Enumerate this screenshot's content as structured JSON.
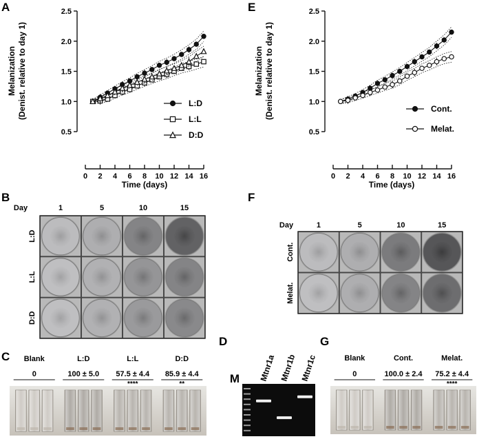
{
  "panels": {
    "A": "A",
    "B": "B",
    "C": "C",
    "D": "D",
    "E": "E",
    "F": "F",
    "G": "G"
  },
  "colors": {
    "ink": "#111111",
    "gel_bg": "#0c0c0c",
    "gel_band": "#f0f0f0",
    "well_bg": "#cfcfcf",
    "tube_bg": "#d9d5cf"
  },
  "chart_data": [
    {
      "id": "A",
      "type": "line",
      "xlabel": "Time (days)",
      "ylabel_line1": "Melanization",
      "ylabel_line2": "(Denist. relative to day 1)",
      "xlim": [
        0,
        16
      ],
      "ylim": [
        0.5,
        2.5
      ],
      "xticks": [
        "0",
        "2",
        "4",
        "6",
        "8",
        "10",
        "12",
        "14",
        "16"
      ],
      "yticks": [
        "0.5",
        "1.0",
        "1.5",
        "2.0",
        "2.5"
      ],
      "x": [
        1,
        2,
        3,
        4,
        5,
        6,
        7,
        8,
        9,
        10,
        11,
        12,
        13,
        14,
        15,
        16
      ],
      "legend_position": "right",
      "series": [
        {
          "name": "L:D",
          "marker": "filled-circle",
          "values": [
            1.0,
            1.07,
            1.14,
            1.21,
            1.28,
            1.34,
            1.41,
            1.47,
            1.53,
            1.6,
            1.65,
            1.71,
            1.78,
            1.86,
            1.95,
            2.08
          ]
        },
        {
          "name": "L:L",
          "marker": "open-square",
          "values": [
            1.0,
            1.01,
            1.04,
            1.1,
            1.16,
            1.2,
            1.26,
            1.31,
            1.36,
            1.41,
            1.45,
            1.5,
            1.55,
            1.58,
            1.62,
            1.66
          ]
        },
        {
          "name": "D:D",
          "marker": "open-triangle",
          "values": [
            1.0,
            1.05,
            1.1,
            1.16,
            1.22,
            1.27,
            1.32,
            1.37,
            1.41,
            1.46,
            1.51,
            1.55,
            1.6,
            1.66,
            1.75,
            1.83
          ]
        }
      ]
    },
    {
      "id": "E",
      "type": "line",
      "xlabel": "Time (days)",
      "ylabel_line1": "Melanization",
      "ylabel_line2": "(Denist. relative to day 1)",
      "xlim": [
        0,
        16
      ],
      "ylim": [
        0.5,
        2.5
      ],
      "xticks": [
        "0",
        "2",
        "4",
        "6",
        "8",
        "10",
        "12",
        "14",
        "16"
      ],
      "yticks": [
        "0.5",
        "1.0",
        "1.5",
        "2.0",
        "2.5"
      ],
      "x": [
        1,
        2,
        3,
        4,
        5,
        6,
        7,
        8,
        9,
        10,
        11,
        12,
        13,
        14,
        15,
        16
      ],
      "legend_position": "right",
      "series": [
        {
          "name": "Cont.",
          "marker": "filled-circle",
          "values": [
            1.0,
            1.04,
            1.09,
            1.15,
            1.22,
            1.3,
            1.36,
            1.43,
            1.5,
            1.58,
            1.66,
            1.74,
            1.82,
            1.92,
            2.02,
            2.15
          ]
        },
        {
          "name": "Melat.",
          "marker": "open-circle",
          "values": [
            1.0,
            1.02,
            1.06,
            1.1,
            1.15,
            1.19,
            1.24,
            1.28,
            1.34,
            1.42,
            1.48,
            1.55,
            1.6,
            1.66,
            1.71,
            1.74
          ]
        }
      ]
    }
  ],
  "panel_B": {
    "day_label": "Day",
    "days": [
      "1",
      "5",
      "10",
      "15"
    ],
    "rows": [
      {
        "label": "L:D",
        "darkness": [
          0.22,
          0.3,
          0.55,
          0.75
        ]
      },
      {
        "label": "L:L",
        "darkness": [
          0.2,
          0.28,
          0.45,
          0.55
        ]
      },
      {
        "label": "D:D",
        "darkness": [
          0.2,
          0.28,
          0.42,
          0.52
        ]
      }
    ]
  },
  "panel_F": {
    "day_label": "Day",
    "days": [
      "1",
      "5",
      "10",
      "15"
    ],
    "rows": [
      {
        "label": "Cont.",
        "darkness": [
          0.22,
          0.3,
          0.6,
          0.82
        ]
      },
      {
        "label": "Melat.",
        "darkness": [
          0.2,
          0.3,
          0.55,
          0.68
        ]
      }
    ]
  },
  "panel_C": {
    "groups": [
      {
        "name": "Blank",
        "value": "0",
        "sig": ""
      },
      {
        "name": "L:D",
        "value": "100 ± 5.0",
        "sig": ""
      },
      {
        "name": "L:L",
        "value": "57.5 ± 4.4",
        "sig": "****"
      },
      {
        "name": "D:D",
        "value": "85.9 ± 4.4",
        "sig": "**"
      }
    ]
  },
  "panel_D": {
    "marker_label": "M",
    "lanes": [
      {
        "name": "Mtnr1a",
        "band": 0.3
      },
      {
        "name": "Mtnr1b",
        "band": 0.62
      },
      {
        "name": "Mtnr1c",
        "band": 0.22
      }
    ]
  },
  "panel_G": {
    "groups": [
      {
        "name": "Blank",
        "value": "0",
        "sig": ""
      },
      {
        "name": "Cont.",
        "value": "100.0 ± 2.4",
        "sig": ""
      },
      {
        "name": "Melat.",
        "value": "75.2 ± 4.4",
        "sig": "****"
      }
    ]
  }
}
